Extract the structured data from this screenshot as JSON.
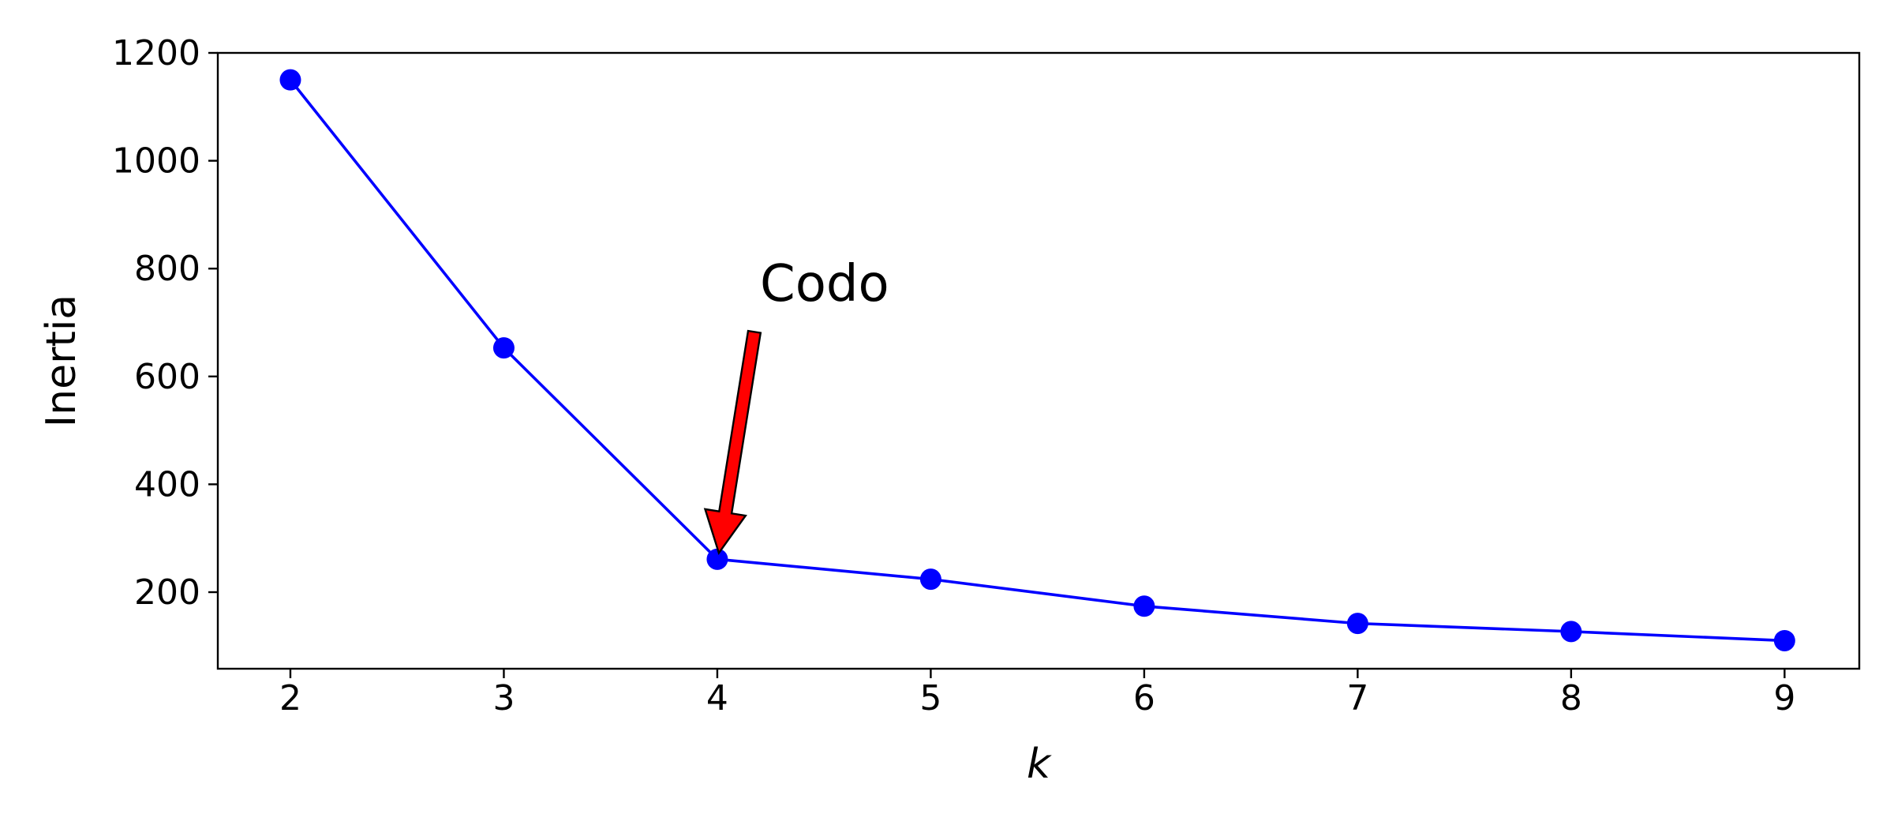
{
  "chart_data": {
    "type": "line",
    "title": "",
    "xlabel": "k",
    "ylabel": "Inertia",
    "x": [
      2,
      3,
      4,
      5,
      6,
      7,
      8,
      9
    ],
    "series": [
      {
        "values": [
          1150,
          653,
          261,
          224,
          174,
          142,
          127,
          110
        ],
        "color": "#0000ff",
        "marker": "circle"
      }
    ],
    "xlim": [
      1.66,
      9.35
    ],
    "ylim": [
      58,
      1200
    ],
    "xticks": [
      2,
      3,
      4,
      5,
      6,
      7,
      8,
      9
    ],
    "yticks": [
      200,
      400,
      600,
      800,
      1000,
      1200
    ],
    "grid": false,
    "annotation": {
      "text": "Codo",
      "point": {
        "x": 4,
        "y": 261
      },
      "text_pos": {
        "x": 4.2,
        "y": 740
      },
      "arrow_color": "#ff0000"
    }
  }
}
